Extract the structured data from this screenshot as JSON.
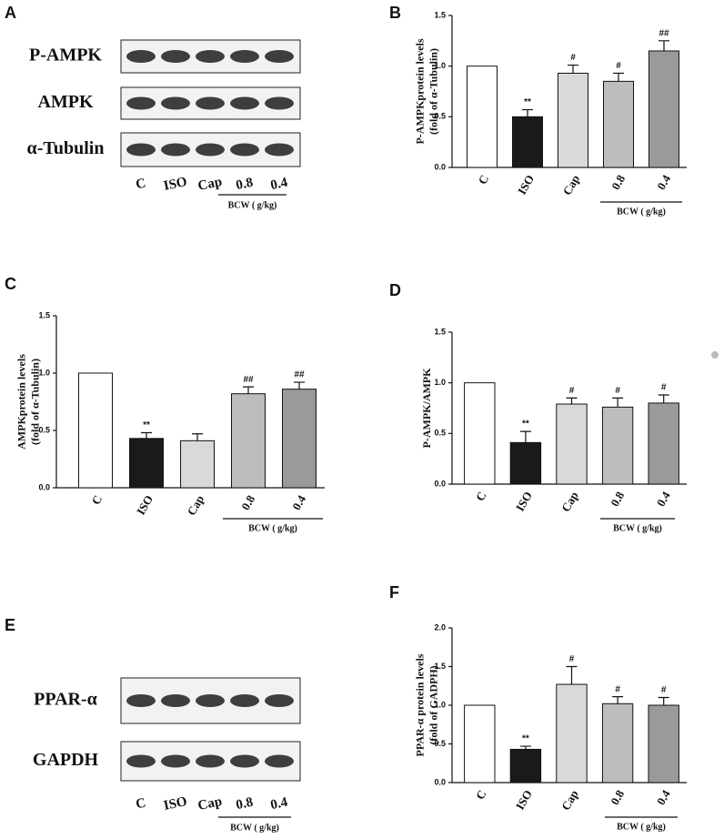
{
  "blots": [
    {
      "panel": "A",
      "rows": [
        "P-AMPK",
        "AMPK",
        "α-Tubulin"
      ],
      "lanes": [
        "C",
        "ISO",
        "Cap",
        "0.8",
        "0.4"
      ],
      "group_label": "BCW ( g/kg)"
    },
    {
      "panel": "E",
      "rows": [
        "PPAR-α",
        "GAPDH"
      ],
      "lanes": [
        "C",
        "ISO",
        "Cap",
        "0.8",
        "0.4"
      ],
      "group_label": "BCW ( g/kg)"
    }
  ],
  "chart_data": [
    {
      "type": "bar",
      "panel": "B",
      "y_label": [
        "P-AMPKprotein levels",
        "(fold of α-Tubulin)"
      ],
      "categories": [
        "C",
        "ISO",
        "Cap",
        "0.8",
        "0.4"
      ],
      "values": [
        1.0,
        0.5,
        0.93,
        0.85,
        1.15
      ],
      "errors": [
        null,
        0.07,
        0.08,
        0.08,
        0.1
      ],
      "annotations": [
        null,
        "**",
        "#",
        "#",
        "##"
      ],
      "colors": [
        "#ffffff",
        "#1a1a1a",
        "#d9d9d9",
        "#bdbdbd",
        "#9a9a9a"
      ],
      "ylim": [
        0,
        1.5
      ],
      "yticks": [
        {
          "value": 0,
          "label": "0.0"
        },
        {
          "value": 0.5,
          "label": "0.5"
        },
        {
          "value": 1,
          "label": "1.0"
        },
        {
          "value": 1.5,
          "label": "1.5"
        }
      ],
      "group_label": "BCW ( g/kg)"
    },
    {
      "type": "bar",
      "panel": "C",
      "y_label": [
        "AMPKprotein levels",
        "(fold of α-Tubulin)"
      ],
      "categories": [
        "C",
        "ISO",
        "Cap",
        "0.8",
        "0.4"
      ],
      "values": [
        1.0,
        0.43,
        0.41,
        0.82,
        0.86
      ],
      "errors": [
        null,
        0.05,
        0.06,
        0.06,
        0.06
      ],
      "annotations": [
        null,
        "**",
        null,
        "##",
        "##"
      ],
      "colors": [
        "#ffffff",
        "#1a1a1a",
        "#d9d9d9",
        "#bdbdbd",
        "#9a9a9a"
      ],
      "ylim": [
        0,
        1.5
      ],
      "yticks": [
        {
          "value": 0,
          "label": "0.0"
        },
        {
          "value": 0.5,
          "label": "0.5"
        },
        {
          "value": 1,
          "label": "1.0"
        },
        {
          "value": 1.5,
          "label": "1.5"
        }
      ],
      "group_label": "BCW ( g/kg)"
    },
    {
      "type": "bar",
      "panel": "D",
      "y_label": [
        "P-AMPK/AMPK"
      ],
      "categories": [
        "C",
        "ISO",
        "Cap",
        "0.8",
        "0.4"
      ],
      "values": [
        1.0,
        0.41,
        0.79,
        0.76,
        0.8
      ],
      "errors": [
        null,
        0.11,
        0.06,
        0.09,
        0.08
      ],
      "annotations": [
        null,
        "**",
        "#",
        "#",
        "#"
      ],
      "colors": [
        "#ffffff",
        "#1a1a1a",
        "#d9d9d9",
        "#bdbdbd",
        "#9a9a9a"
      ],
      "ylim": [
        0,
        1.5
      ],
      "yticks": [
        {
          "value": 0,
          "label": "0.0"
        },
        {
          "value": 0.5,
          "label": "0.5"
        },
        {
          "value": 1,
          "label": "1.0"
        },
        {
          "value": 1.5,
          "label": "1.5"
        }
      ],
      "group_label": "BCW ( g/kg)"
    },
    {
      "type": "bar",
      "panel": "F",
      "y_label": [
        "PPAR-α protein levels",
        "(fold of GADPH)"
      ],
      "categories": [
        "C",
        "ISO",
        "Cap",
        "0.8",
        "0.4"
      ],
      "values": [
        1.0,
        0.43,
        1.27,
        1.02,
        1.0
      ],
      "errors": [
        null,
        0.04,
        0.23,
        0.09,
        0.1
      ],
      "annotations": [
        null,
        "**",
        "#",
        "#",
        "#"
      ],
      "colors": [
        "#ffffff",
        "#1a1a1a",
        "#d9d9d9",
        "#bdbdbd",
        "#9a9a9a"
      ],
      "ylim": [
        0,
        2
      ],
      "yticks": [
        {
          "value": 0,
          "label": "0.0"
        },
        {
          "value": 0.5,
          "label": "0.5"
        },
        {
          "value": 1,
          "label": "1.0"
        },
        {
          "value": 1.5,
          "label": "1.5"
        },
        {
          "value": 2,
          "label": "2.0"
        }
      ],
      "group_label": "BCW ( g/kg)"
    }
  ]
}
